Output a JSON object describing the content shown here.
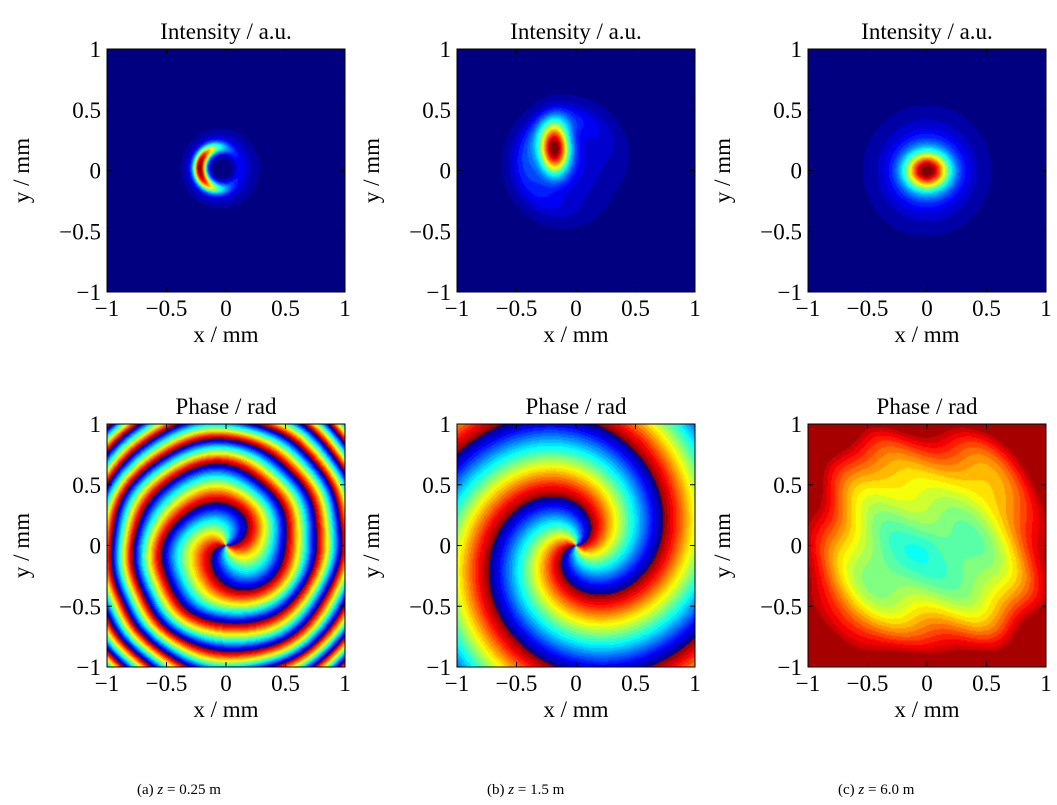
{
  "chart_data": [
    {
      "type": "heatmap",
      "field": "intensity",
      "column": "a",
      "title": "Intensity / a.u.",
      "xlabel": "x / mm",
      "ylabel": "y / mm",
      "xlim": [
        -1,
        1
      ],
      "ylim": [
        -1,
        1
      ],
      "xticks": [
        -1,
        -0.5,
        0,
        0.5,
        1
      ],
      "yticks": [
        -1,
        -0.5,
        0,
        0.5,
        1
      ],
      "colormap": "jet",
      "pattern": "crescent ring, bright on left side",
      "center": [
        -0.05,
        0.02
      ]
    },
    {
      "type": "heatmap",
      "field": "intensity",
      "column": "b",
      "title": "Intensity / a.u.",
      "xlabel": "x / mm",
      "ylabel": "y / mm",
      "xlim": [
        -1,
        1
      ],
      "ylim": [
        -1,
        1
      ],
      "xticks": [
        -1,
        -0.5,
        0,
        0.5,
        1
      ],
      "yticks": [
        -1,
        -0.5,
        0,
        0.5,
        1
      ],
      "colormap": "jet",
      "pattern": "bright lobe upper-left with faint crescent halo",
      "center": [
        -0.18,
        0.18
      ]
    },
    {
      "type": "heatmap",
      "field": "intensity",
      "column": "c",
      "title": "Intensity / a.u.",
      "xlabel": "x / mm",
      "ylabel": "y / mm",
      "xlim": [
        -1,
        1
      ],
      "ylim": [
        -1,
        1
      ],
      "xticks": [
        -1,
        -0.5,
        0,
        0.5,
        1
      ],
      "yticks": [
        -1,
        -0.5,
        0,
        0.5,
        1
      ],
      "colormap": "jet",
      "pattern": "centered Gaussian-like spot",
      "center": [
        0.0,
        0.0
      ]
    },
    {
      "type": "heatmap",
      "field": "phase",
      "column": "a",
      "title": "Phase / rad",
      "xlabel": "x / mm",
      "ylabel": "y / mm",
      "xlim": [
        -1,
        1
      ],
      "ylim": [
        -1,
        1
      ],
      "xticks": [
        -1,
        -0.5,
        0,
        0.5,
        1
      ],
      "yticks": [
        -1,
        -0.5,
        0,
        0.5,
        1
      ],
      "colormap": "jet",
      "pattern": "double spiral with dense wrapped fringes"
    },
    {
      "type": "heatmap",
      "field": "phase",
      "column": "b",
      "title": "Phase / rad",
      "xlabel": "x / mm",
      "ylabel": "y / mm",
      "xlim": [
        -1,
        1
      ],
      "ylim": [
        -1,
        1
      ],
      "xticks": [
        -1,
        -0.5,
        0,
        0.5,
        1
      ],
      "yticks": [
        -1,
        -0.5,
        0,
        0.5,
        1
      ],
      "colormap": "jet",
      "pattern": "clean double spiral"
    },
    {
      "type": "heatmap",
      "field": "phase",
      "column": "c",
      "title": "Phase / rad",
      "xlabel": "x / mm",
      "ylabel": "y / mm",
      "xlim": [
        -1,
        1
      ],
      "ylim": [
        -1,
        1
      ],
      "xticks": [
        -1,
        -0.5,
        0,
        0.5,
        1
      ],
      "yticks": [
        -1,
        -0.5,
        0,
        0.5,
        1
      ],
      "colormap": "jet",
      "pattern": "smooth radial bowl, minimum at center"
    }
  ],
  "captions": [
    {
      "tag": "(a)",
      "var": "z",
      "eq": "=",
      "value": "0.25",
      "unit": "m"
    },
    {
      "tag": "(b)",
      "var": "z",
      "eq": "=",
      "value": "1.5",
      "unit": "m"
    },
    {
      "tag": "(c)",
      "var": "z",
      "eq": "=",
      "value": "6.0",
      "unit": "m"
    }
  ]
}
